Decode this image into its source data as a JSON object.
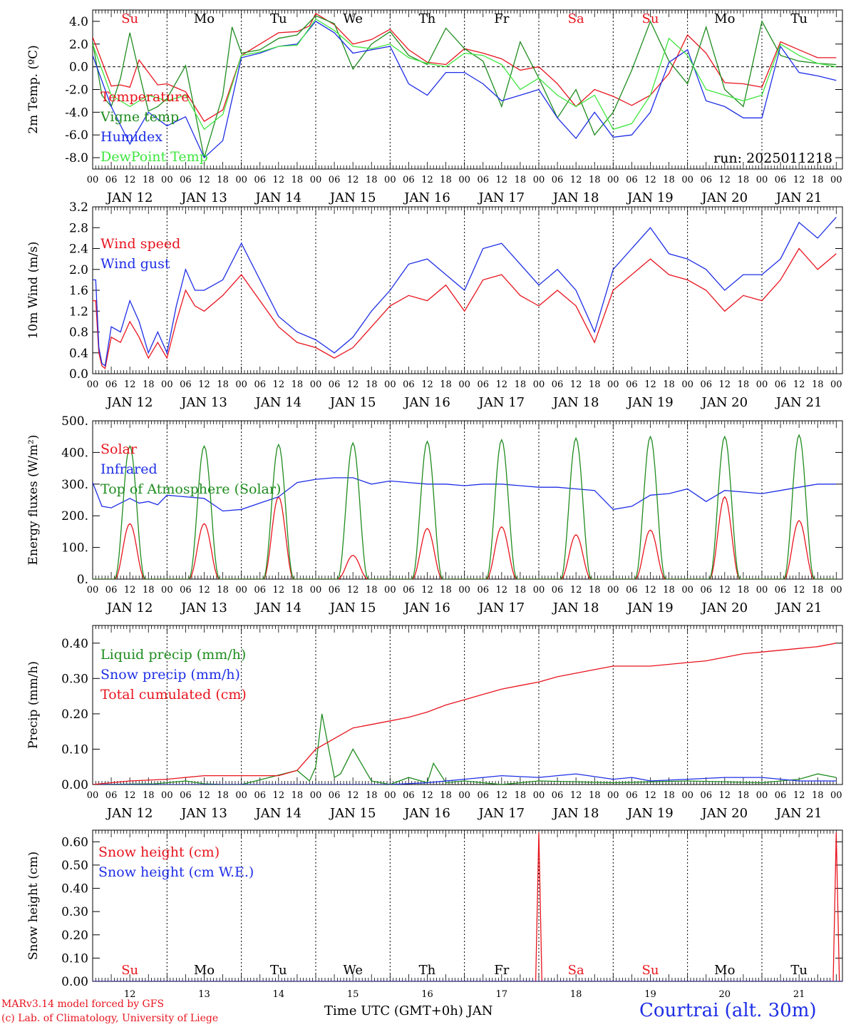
{
  "colors": {
    "red": "#e8141e",
    "green": "#1f8c1f",
    "blue": "#1e2ee6",
    "lightgreen": "#3ee63e",
    "black": "#000000"
  },
  "footer": {
    "credit_line1": "MARv3.14 model forced by GFS",
    "credit_line2": "(c) Lab. of Climatology, University of Liege",
    "time_label": "Time UTC (GMT+0h) JAN",
    "station": "Courtrai (alt. 30m)"
  },
  "hour_ticks": [
    "00",
    "06",
    "12",
    "18"
  ],
  "day_labels": [
    "JAN 12",
    "JAN 13",
    "JAN 14",
    "JAN 15",
    "JAN 16",
    "JAN 17",
    "JAN 18",
    "JAN 19",
    "JAN 20",
    "JAN 21"
  ],
  "day_numbers": [
    "12",
    "13",
    "14",
    "15",
    "16",
    "17",
    "18",
    "19",
    "20",
    "21"
  ],
  "weekdays": [
    {
      "label": "Su",
      "color": "red"
    },
    {
      "label": "Mo",
      "color": "black"
    },
    {
      "label": "Tu",
      "color": "black"
    },
    {
      "label": "We",
      "color": "black"
    },
    {
      "label": "Th",
      "color": "black"
    },
    {
      "label": "Fr",
      "color": "black"
    },
    {
      "label": "Sa",
      "color": "red"
    },
    {
      "label": "Su",
      "color": "red"
    },
    {
      "label": "Mo",
      "color": "black"
    },
    {
      "label": "Tu",
      "color": "black"
    }
  ],
  "chart_data": [
    {
      "type": "line",
      "ylabel": "2m Temp. (ºC)",
      "ylim": [
        -9,
        5
      ],
      "yticks": [
        "4.0",
        "2.0",
        "0.0",
        "-2.0",
        "-4.0",
        "-6.0",
        "-8.0"
      ],
      "ytick_values": [
        4,
        2,
        0,
        -2,
        -4,
        -6,
        -8
      ],
      "zero_line": true,
      "run_label": "run: 2025011218",
      "x_unit": "hours since JAN 12 00 UTC",
      "series": [
        {
          "name": "Temperature",
          "color": "red",
          "x": [
            0,
            6,
            9,
            12,
            15,
            18,
            21,
            24,
            30,
            36,
            42,
            48,
            54,
            60,
            66,
            70,
            72,
            78,
            84,
            90,
            96,
            102,
            108,
            114,
            120,
            126,
            132,
            138,
            144,
            150,
            156,
            162,
            168,
            174,
            180,
            186,
            192,
            198,
            204,
            210,
            216,
            222,
            228,
            234,
            240
          ],
          "y": [
            2.6,
            -1.7,
            -1.6,
            -1.8,
            0.6,
            -0.5,
            -1.6,
            -1.5,
            -2.2,
            -4.8,
            -3.8,
            1.0,
            2.0,
            3.0,
            3.1,
            3.6,
            4.7,
            3.7,
            2.0,
            2.4,
            3.3,
            1.5,
            0.4,
            0.2,
            1.6,
            1.2,
            0.7,
            -0.3,
            0.0,
            -1.5,
            -3.5,
            -2.0,
            -2.6,
            -3.4,
            -2.5,
            -0.6,
            2.8,
            1.2,
            -1.4,
            -1.5,
            -1.8,
            2.2,
            1.5,
            0.8,
            0.8
          ]
        },
        {
          "name": "Vigne temp",
          "color": "green",
          "x": [
            0,
            3,
            6,
            9,
            12,
            15,
            18,
            21,
            24,
            30,
            36,
            42,
            45,
            48,
            54,
            60,
            66,
            72,
            78,
            84,
            90,
            96,
            102,
            108,
            114,
            120,
            126,
            132,
            138,
            144,
            150,
            156,
            162,
            168,
            174,
            180,
            186,
            192,
            198,
            204,
            210,
            216,
            222,
            228,
            234,
            240
          ],
          "y": [
            2.2,
            -2.5,
            -3.5,
            -1.0,
            3.0,
            -0.5,
            -3.9,
            -3.5,
            -2.8,
            0.1,
            -8.0,
            -2.5,
            3.5,
            1.2,
            1.5,
            2.5,
            2.8,
            4.5,
            3.8,
            -0.2,
            2.0,
            3.1,
            1.0,
            0.2,
            3.4,
            1.6,
            0.5,
            -3.5,
            2.2,
            -1.0,
            -4.5,
            -2.0,
            -6.0,
            -4.0,
            -0.3,
            4.0,
            0.5,
            -1.5,
            3.5,
            -2.0,
            -3.5,
            4.0,
            1.0,
            0.5,
            0.3,
            0.2
          ]
        },
        {
          "name": "Humidex",
          "color": "blue",
          "x": [
            0,
            6,
            12,
            18,
            24,
            30,
            36,
            42,
            48,
            54,
            60,
            66,
            72,
            78,
            84,
            90,
            96,
            102,
            108,
            114,
            120,
            126,
            132,
            138,
            144,
            150,
            156,
            162,
            168,
            174,
            180,
            186,
            192,
            198,
            204,
            210,
            216,
            222,
            228,
            234,
            240
          ],
          "y": [
            1.0,
            -3.5,
            -6.8,
            -4.0,
            -5.2,
            -4.4,
            -8.0,
            -6.5,
            0.8,
            1.2,
            1.8,
            2.0,
            4.0,
            3.0,
            1.2,
            1.5,
            1.8,
            -1.5,
            -2.5,
            -0.5,
            -0.5,
            -1.5,
            -3.0,
            -2.5,
            -2.0,
            -4.5,
            -6.3,
            -4.0,
            -6.2,
            -6.0,
            -4.0,
            0.4,
            1.5,
            -3.0,
            -3.5,
            -4.5,
            -4.5,
            1.8,
            -0.5,
            -0.8,
            -1.2
          ]
        },
        {
          "name": "DewPoint Temp",
          "color": "lightgreen",
          "x": [
            0,
            6,
            12,
            18,
            24,
            30,
            36,
            42,
            48,
            54,
            60,
            66,
            72,
            78,
            84,
            90,
            96,
            102,
            108,
            114,
            120,
            126,
            132,
            138,
            144,
            150,
            156,
            162,
            168,
            174,
            180,
            186,
            192,
            198,
            204,
            210,
            216,
            222,
            228,
            234,
            240
          ],
          "y": [
            2.0,
            -2.5,
            -3.5,
            -2.5,
            -3.0,
            -2.5,
            -5.5,
            -4.2,
            1.0,
            1.3,
            1.8,
            1.9,
            4.2,
            3.2,
            1.8,
            1.6,
            2.0,
            0.8,
            0.3,
            0.0,
            1.2,
            1.0,
            0.2,
            -2.0,
            -1.0,
            -2.5,
            -3.5,
            -2.5,
            -5.5,
            -5.0,
            -2.5,
            2.5,
            1.0,
            -2.0,
            -2.5,
            -3.0,
            -2.5,
            2.0,
            1.0,
            0.3,
            0.0
          ]
        }
      ]
    },
    {
      "type": "line",
      "ylabel": "10m Wind (m/s)",
      "ylim": [
        0,
        3.2
      ],
      "yticks": [
        "3.2",
        "2.8",
        "2.4",
        "2.0",
        "1.6",
        "1.2",
        "0.8",
        "0.4",
        "0.0"
      ],
      "ytick_values": [
        3.2,
        2.8,
        2.4,
        2.0,
        1.6,
        1.2,
        0.8,
        0.4,
        0.0
      ],
      "x_unit": "hours since JAN 12 00 UTC",
      "series": [
        {
          "name": "Wind speed",
          "color": "red",
          "x": [
            0,
            1,
            2,
            3,
            4,
            6,
            9,
            12,
            15,
            18,
            21,
            24,
            27,
            30,
            33,
            36,
            42,
            48,
            54,
            60,
            66,
            72,
            78,
            84,
            90,
            96,
            102,
            108,
            114,
            120,
            126,
            132,
            138,
            144,
            150,
            156,
            162,
            168,
            174,
            180,
            186,
            192,
            198,
            204,
            210,
            216,
            222,
            228,
            234,
            240
          ],
          "y": [
            1.4,
            1.4,
            0.4,
            0.15,
            0.1,
            0.7,
            0.6,
            1.0,
            0.7,
            0.3,
            0.6,
            0.3,
            1.0,
            1.6,
            1.3,
            1.2,
            1.5,
            1.9,
            1.4,
            0.9,
            0.6,
            0.5,
            0.3,
            0.5,
            0.9,
            1.3,
            1.5,
            1.4,
            1.7,
            1.2,
            1.8,
            1.9,
            1.5,
            1.3,
            1.6,
            1.3,
            0.6,
            1.6,
            1.9,
            2.2,
            1.9,
            1.8,
            1.6,
            1.2,
            1.5,
            1.4,
            1.8,
            2.4,
            2.0,
            2.3
          ]
        },
        {
          "name": "Wind gust",
          "color": "blue",
          "x": [
            0,
            1,
            2,
            3,
            4,
            6,
            9,
            12,
            15,
            18,
            21,
            24,
            27,
            30,
            33,
            36,
            42,
            48,
            54,
            60,
            66,
            72,
            78,
            84,
            90,
            96,
            102,
            108,
            114,
            120,
            126,
            132,
            138,
            144,
            150,
            156,
            162,
            168,
            174,
            180,
            186,
            192,
            198,
            204,
            210,
            216,
            222,
            228,
            234,
            240
          ],
          "y": [
            1.8,
            1.8,
            0.5,
            0.2,
            0.15,
            0.9,
            0.8,
            1.4,
            1.0,
            0.4,
            0.8,
            0.4,
            1.3,
            2.0,
            1.6,
            1.6,
            1.8,
            2.5,
            1.8,
            1.1,
            0.8,
            0.65,
            0.4,
            0.7,
            1.2,
            1.6,
            2.1,
            2.2,
            1.9,
            1.6,
            2.4,
            2.5,
            2.1,
            1.7,
            2.0,
            1.6,
            0.8,
            2.0,
            2.4,
            2.8,
            2.3,
            2.2,
            2.0,
            1.6,
            1.9,
            1.9,
            2.2,
            2.9,
            2.6,
            3.0
          ]
        }
      ]
    },
    {
      "type": "line",
      "ylabel": "Energy fluxes (W/m²)",
      "ylim": [
        0,
        500
      ],
      "yticks": [
        "500.",
        "400.",
        "300.",
        "200.",
        "100.",
        "0."
      ],
      "ytick_values": [
        500,
        400,
        300,
        200,
        100,
        0
      ],
      "x_unit": "hours since JAN 12 00 UTC",
      "solar_peaks": [
        175,
        175,
        260,
        75,
        160,
        165,
        140,
        155,
        260,
        185
      ],
      "toa_peaks": [
        420,
        420,
        425,
        430,
        435,
        440,
        445,
        450,
        450,
        455
      ],
      "series": [
        {
          "name": "Solar",
          "color": "red",
          "note": "daily bell curve 07–17 UTC with peaks listed in solar_peaks"
        },
        {
          "name": "Infrared",
          "color": "blue",
          "x": [
            0,
            3,
            6,
            9,
            12,
            15,
            18,
            21,
            24,
            30,
            36,
            42,
            48,
            54,
            60,
            66,
            72,
            78,
            84,
            90,
            96,
            102,
            108,
            114,
            120,
            126,
            132,
            138,
            144,
            150,
            156,
            162,
            168,
            174,
            180,
            186,
            192,
            198,
            204,
            210,
            216,
            222,
            228,
            234,
            240
          ],
          "y": [
            305,
            230,
            225,
            240,
            255,
            240,
            245,
            235,
            265,
            260,
            255,
            215,
            220,
            240,
            260,
            305,
            315,
            320,
            320,
            300,
            310,
            305,
            300,
            300,
            295,
            300,
            300,
            295,
            290,
            290,
            285,
            280,
            220,
            230,
            265,
            270,
            285,
            245,
            280,
            275,
            270,
            280,
            290,
            300,
            300
          ]
        },
        {
          "name": "Top of Atmosphere (Solar)",
          "color": "green",
          "note": "daily bell curve 07–17 UTC with peaks listed in toa_peaks"
        }
      ]
    },
    {
      "type": "line",
      "ylabel": "Precip (mm/h)",
      "ylim": [
        0,
        0.45
      ],
      "yticks": [
        "0.40",
        "0.30",
        "0.20",
        "0.10",
        "0.00"
      ],
      "ytick_values": [
        0.4,
        0.3,
        0.2,
        0.1,
        0.0
      ],
      "x_unit": "hours since JAN 12 00 UTC",
      "series": [
        {
          "name": "Liquid precip (mm/h)",
          "color": "green",
          "x": [
            0,
            20,
            24,
            30,
            36,
            42,
            48,
            66,
            70,
            72,
            74,
            78,
            80,
            84,
            90,
            96,
            102,
            108,
            110,
            114,
            120,
            132,
            144,
            168,
            192,
            216,
            228,
            234,
            240
          ],
          "y": [
            0,
            0.002,
            0.005,
            0.01,
            0.002,
            0,
            0,
            0.04,
            0.01,
            0.05,
            0.2,
            0.02,
            0.03,
            0.1,
            0.01,
            0.0,
            0.02,
            0.005,
            0.06,
            0.005,
            0.01,
            0.0,
            0.01,
            0.005,
            0.01,
            0.005,
            0.015,
            0.03,
            0.02
          ]
        },
        {
          "name": "Snow precip (mm/h)",
          "color": "blue",
          "x": [
            0,
            96,
            108,
            120,
            132,
            144,
            156,
            168,
            174,
            180,
            192,
            204,
            216,
            228,
            240
          ],
          "y": [
            0,
            0,
            0.005,
            0.015,
            0.025,
            0.02,
            0.03,
            0.015,
            0.02,
            0.01,
            0.015,
            0.02,
            0.02,
            0.01,
            0.01
          ]
        },
        {
          "name": "Total cumulated (cm)",
          "color": "red",
          "x": [
            0,
            12,
            24,
            36,
            48,
            60,
            66,
            72,
            78,
            84,
            90,
            96,
            102,
            108,
            114,
            120,
            126,
            132,
            138,
            144,
            150,
            156,
            162,
            168,
            174,
            180,
            186,
            192,
            198,
            204,
            210,
            216,
            222,
            228,
            234,
            240
          ],
          "y": [
            0,
            0.01,
            0.015,
            0.025,
            0.025,
            0.025,
            0.04,
            0.1,
            0.13,
            0.16,
            0.17,
            0.18,
            0.19,
            0.205,
            0.225,
            0.24,
            0.255,
            0.27,
            0.28,
            0.29,
            0.305,
            0.315,
            0.325,
            0.335,
            0.335,
            0.335,
            0.34,
            0.345,
            0.35,
            0.36,
            0.37,
            0.375,
            0.38,
            0.385,
            0.39,
            0.4
          ]
        }
      ]
    },
    {
      "type": "line",
      "ylabel": "Snow height (cm)",
      "ylim": [
        0,
        0.65
      ],
      "yticks": [
        "0.60",
        "0.50",
        "0.40",
        "0.30",
        "0.20",
        "0.10",
        "0.00"
      ],
      "ytick_values": [
        0.6,
        0.5,
        0.4,
        0.3,
        0.2,
        0.1,
        0.0
      ],
      "x_unit": "hours since JAN 12 00 UTC",
      "series": [
        {
          "name": "Snow height (cm)",
          "color": "red",
          "x": [
            0,
            143,
            144,
            145,
            239,
            240,
            241,
            244
          ],
          "y": [
            0,
            0,
            0.64,
            0,
            0,
            0.64,
            0,
            0
          ]
        },
        {
          "name": "Snow height (cm W.E.)",
          "color": "blue",
          "x": [
            0,
            244
          ],
          "y": [
            0,
            0
          ]
        }
      ]
    }
  ]
}
